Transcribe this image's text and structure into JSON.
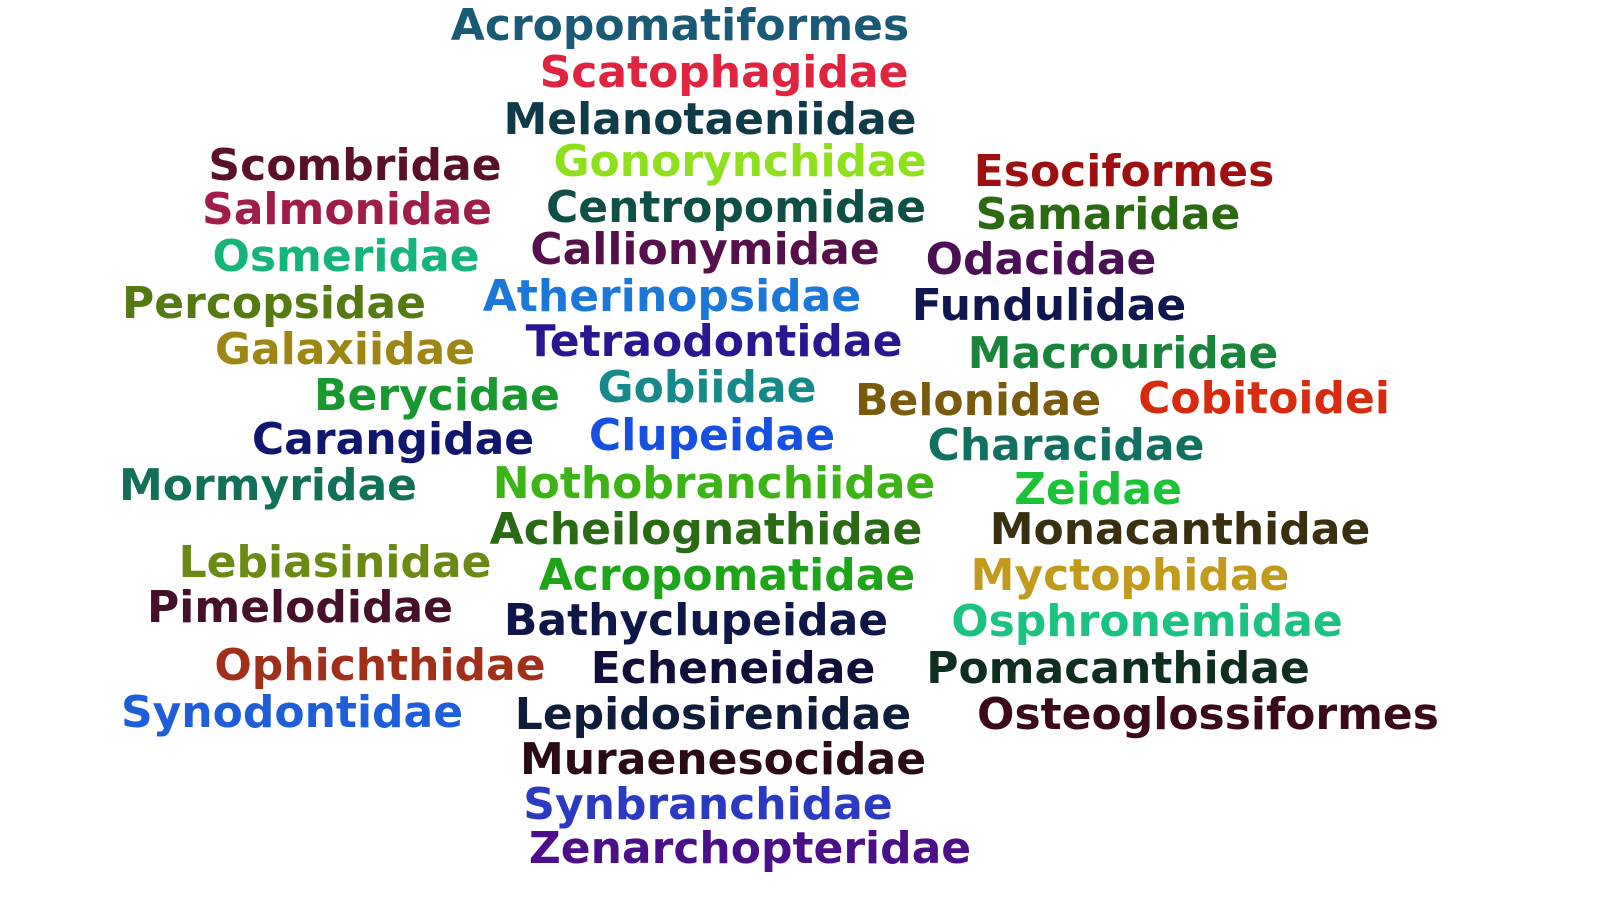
{
  "words": [
    {
      "text": "Acropomatiformes",
      "color": "#1b5a76"
    },
    {
      "text": "Scatophagidae",
      "color": "#e0233f"
    },
    {
      "text": "Melanotaeniidae",
      "color": "#0f3b48"
    },
    {
      "text": "Scombridae",
      "color": "#5a0f2a"
    },
    {
      "text": "Gonorynchidae",
      "color": "#8fe01c"
    },
    {
      "text": "Esociformes",
      "color": "#9e0f0f"
    },
    {
      "text": "Salmonidae",
      "color": "#a01c4a"
    },
    {
      "text": "Centropomidae",
      "color": "#0f5046"
    },
    {
      "text": "Samaridae",
      "color": "#2a6a10"
    },
    {
      "text": "Osmeridae",
      "color": "#14b47a"
    },
    {
      "text": "Callionymidae",
      "color": "#55104c"
    },
    {
      "text": "Odacidae",
      "color": "#4c0f55"
    },
    {
      "text": "Percopsidae",
      "color": "#567a12"
    },
    {
      "text": "Atherinopsidae",
      "color": "#1c78d8"
    },
    {
      "text": "Fundulidae",
      "color": "#0f1650"
    },
    {
      "text": "Galaxiidae",
      "color": "#9e8614"
    },
    {
      "text": "Tetraodontidae",
      "color": "#2a1690"
    },
    {
      "text": "Macrouridae",
      "color": "#18853a"
    },
    {
      "text": "Berycidae",
      "color": "#18982e"
    },
    {
      "text": "Gobiidae",
      "color": "#168a8a"
    },
    {
      "text": "Belonidae",
      "color": "#7a5a0c"
    },
    {
      "text": "Cobitoidei",
      "color": "#d82a0e"
    },
    {
      "text": "Carangidae",
      "color": "#10156e"
    },
    {
      "text": "Clupeidae",
      "color": "#1650e0"
    },
    {
      "text": "Characidae",
      "color": "#127060"
    },
    {
      "text": "Mormyridae",
      "color": "#127058"
    },
    {
      "text": "Nothobranchiidae",
      "color": "#3cb416"
    },
    {
      "text": "Zeidae",
      "color": "#1cc238"
    },
    {
      "text": "Acheilognathidae",
      "color": "#2a6a14"
    },
    {
      "text": "Monacanthidae",
      "color": "#3a3010"
    },
    {
      "text": "Lebiasinidae",
      "color": "#6a8a14"
    },
    {
      "text": "Acropomatidae",
      "color": "#1ea418"
    },
    {
      "text": "Myctophidae",
      "color": "#c29a1c"
    },
    {
      "text": "Pimelodidae",
      "color": "#460f2a"
    },
    {
      "text": "Bathyclupeidae",
      "color": "#0f1648"
    },
    {
      "text": "Osphronemidae",
      "color": "#1cc282"
    },
    {
      "text": "Ophichthidae",
      "color": "#a0301a"
    },
    {
      "text": "Echeneidae",
      "color": "#0f0f3a"
    },
    {
      "text": "Pomacanthidae",
      "color": "#0f2e1e"
    },
    {
      "text": "Synodontidae",
      "color": "#1e5ed8"
    },
    {
      "text": "Lepidosirenidae",
      "color": "#0f1c3a"
    },
    {
      "text": "Osteoglossiformes",
      "color": "#3a0a18"
    },
    {
      "text": "Muraenesocidae",
      "color": "#2a0a14"
    },
    {
      "text": "Synbranchidae",
      "color": "#2a3ac2"
    },
    {
      "text": "Zenarchopteridae",
      "color": "#4c0f8a"
    }
  ]
}
